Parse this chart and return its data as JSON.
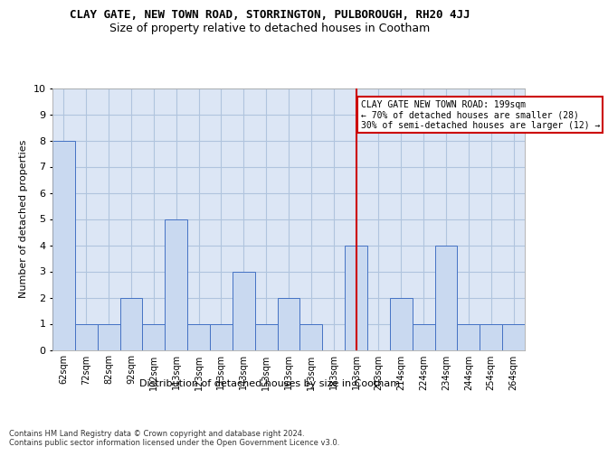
{
  "title": "CLAY GATE, NEW TOWN ROAD, STORRINGTON, PULBOROUGH, RH20 4JJ",
  "subtitle": "Size of property relative to detached houses in Cootham",
  "xlabel": "Distribution of detached houses by size in Cootham",
  "ylabel": "Number of detached properties",
  "categories": [
    "62sqm",
    "72sqm",
    "82sqm",
    "92sqm",
    "102sqm",
    "113sqm",
    "123sqm",
    "133sqm",
    "143sqm",
    "153sqm",
    "163sqm",
    "173sqm",
    "183sqm",
    "193sqm",
    "203sqm",
    "214sqm",
    "224sqm",
    "234sqm",
    "244sqm",
    "254sqm",
    "264sqm"
  ],
  "values": [
    8,
    1,
    1,
    2,
    1,
    5,
    1,
    1,
    3,
    1,
    2,
    1,
    0,
    4,
    0,
    2,
    1,
    4,
    1,
    1,
    1
  ],
  "bar_color": "#c9d9f0",
  "bar_edge_color": "#4472c4",
  "vline_index": 13,
  "vline_color": "#cc0000",
  "annotation_text": "CLAY GATE NEW TOWN ROAD: 199sqm\n← 70% of detached houses are smaller (28)\n30% of semi-detached houses are larger (12) →",
  "annotation_box_color": "#cc0000",
  "annotation_bg": "#ffffff",
  "ylim": [
    0,
    10
  ],
  "yticks": [
    0,
    1,
    2,
    3,
    4,
    5,
    6,
    7,
    8,
    9,
    10
  ],
  "grid_color": "#b0c4de",
  "bg_color": "#dce6f5",
  "footer": "Contains HM Land Registry data © Crown copyright and database right 2024.\nContains public sector information licensed under the Open Government Licence v3.0.",
  "title_fontsize": 9,
  "subtitle_fontsize": 9,
  "tick_fontsize": 7,
  "ylabel_fontsize": 8,
  "xlabel_fontsize": 8,
  "footer_fontsize": 6
}
